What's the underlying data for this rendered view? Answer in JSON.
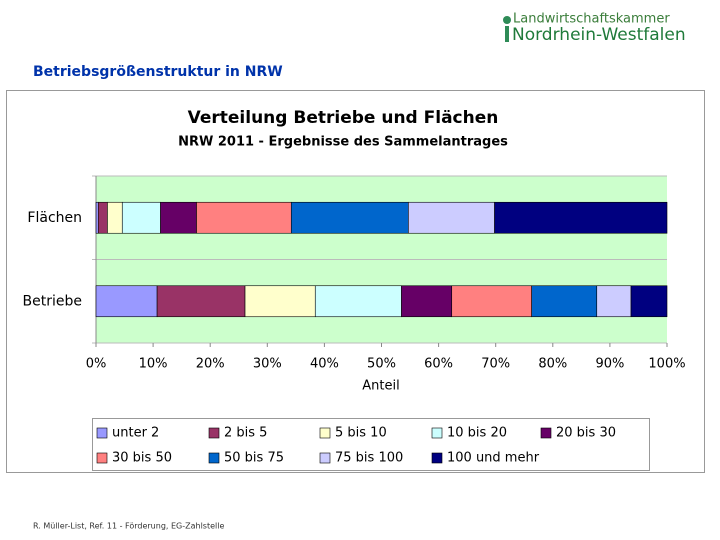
{
  "logo": {
    "line1": "Landwirtschaftskammer",
    "line2": "Nordrhein-Westfalen"
  },
  "heading": "Betriebsgrößenstruktur in NRW",
  "footer": "R. Müller-List, Ref. 11 - Förderung, EG-Zahlstelle",
  "chart_data": {
    "type": "stacked_bar_horizontal",
    "title": "Verteilung Betriebe und Flächen",
    "subtitle": "NRW 2011 - Ergebnisse des Sammelantrages",
    "x_label": "Anteil",
    "categories": [
      "Flächen",
      "Betriebe"
    ],
    "series": [
      {
        "name": "unter 2",
        "color": "#9999ff",
        "values": [
          0.4,
          10.7
        ]
      },
      {
        "name": "2 bis 5",
        "color": "#993366",
        "values": [
          1.6,
          15.4
        ]
      },
      {
        "name": "5 bis 10",
        "color": "#ffffcc",
        "values": [
          2.6,
          12.3
        ]
      },
      {
        "name": "10 bis 20",
        "color": "#ccffff",
        "values": [
          6.7,
          15.1
        ]
      },
      {
        "name": "20 bis 30",
        "color": "#660066",
        "values": [
          6.3,
          8.8
        ]
      },
      {
        "name": "30 bis 50",
        "color": "#ff8080",
        "values": [
          16.6,
          14.0
        ]
      },
      {
        "name": "50 bis 75",
        "color": "#0066cc",
        "values": [
          20.5,
          11.4
        ]
      },
      {
        "name": "75 bis 100",
        "color": "#ccccff",
        "values": [
          15.1,
          6.0
        ]
      },
      {
        "name": "100 und mehr",
        "color": "#000080",
        "values": [
          30.2,
          6.3
        ]
      }
    ],
    "xlim": [
      0,
      100
    ],
    "xticks": [
      {
        "value": 0,
        "label": "0%"
      },
      {
        "value": 10,
        "label": "10%"
      },
      {
        "value": 20,
        "label": "20%"
      },
      {
        "value": 30,
        "label": "30%"
      },
      {
        "value": 40,
        "label": "40%"
      },
      {
        "value": 50,
        "label": "50%"
      },
      {
        "value": 60,
        "label": "60%"
      },
      {
        "value": 70,
        "label": "70%"
      },
      {
        "value": 80,
        "label": "80%"
      },
      {
        "value": 90,
        "label": "90%"
      },
      {
        "value": 100,
        "label": "100%"
      }
    ],
    "plot_background": "#ccffcc",
    "legend": "bottom"
  }
}
